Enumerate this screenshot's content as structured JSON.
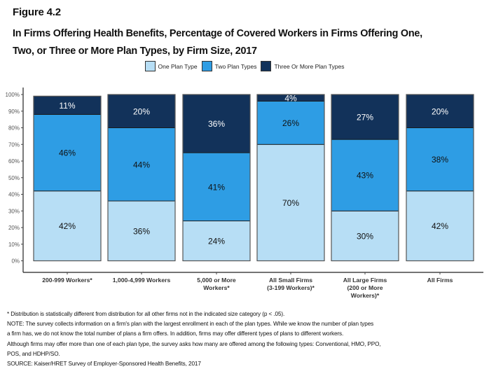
{
  "figure_label": "Figure 4.2",
  "title_lines": [
    "In Firms Offering Health Benefits, Percentage of Covered Workers in Firms Offering One,",
    "Two, or Three or More Plan Types, by Firm Size, 2017"
  ],
  "chart_data": {
    "type": "bar",
    "stacked": true,
    "title": "In Firms Offering Health Benefits, Percentage of Covered Workers in Firms Offering One, Two, or Three or More Plan Types, by Firm Size, 2017",
    "xlabel": "",
    "ylabel": "",
    "ylim": [
      0,
      100
    ],
    "yticks": [
      "0%",
      "10%",
      "20%",
      "30%",
      "40%",
      "50%",
      "60%",
      "70%",
      "80%",
      "90%",
      "100%"
    ],
    "grid": false,
    "legend_position": "top-center",
    "categories": [
      [
        "200-999 Workers*"
      ],
      [
        "1,000-4,999 Workers"
      ],
      [
        "5,000 or More",
        "Workers*"
      ],
      [
        "All Small Firms",
        "(3-199 Workers)*"
      ],
      [
        "All Large Firms",
        "(200 or More",
        "Workers)*"
      ],
      [
        "All Firms"
      ]
    ],
    "series": [
      {
        "name": "One Plan Type",
        "color": "#b7def5",
        "label_color": "#111111",
        "values": [
          42,
          36,
          24,
          70,
          30,
          42
        ]
      },
      {
        "name": "Two Plan Types",
        "color": "#2e9de4",
        "label_color": "#111111",
        "values": [
          46,
          44,
          41,
          26,
          43,
          38
        ]
      },
      {
        "name": "Three Or More Plan Types",
        "color": "#12325a",
        "label_color": "#ffffff",
        "values": [
          11,
          20,
          36,
          4,
          27,
          20
        ]
      }
    ],
    "data_labels": [
      [
        "42%",
        "46%",
        "11%"
      ],
      [
        "36%",
        "44%",
        "20%"
      ],
      [
        "24%",
        "41%",
        "36%"
      ],
      [
        "70%",
        "26%",
        "4%"
      ],
      [
        "30%",
        "43%",
        "27%"
      ],
      [
        "42%",
        "38%",
        "20%"
      ]
    ]
  },
  "footnotes": [
    "* Distribution is statistically different from distribution for all other firms not in the indicated size category (p < .05).",
    "NOTE: The survey collects information on a firm's plan with the largest enrollment in each of the plan types. While we know the number of plan types",
    "a firm has, we do not know the total number of plans a firm offers. In addition, firms may offer different types of plans to different workers.",
    "Although firms may offer more than one of each plan type, the survey asks how many are offered among the following types: Conventional, HMO, PPO,",
    "POS, and HDHP/SO.",
    "SOURCE: Kaiser/HRET Survey of Employer-Sponsored Health Benefits, 2017"
  ]
}
